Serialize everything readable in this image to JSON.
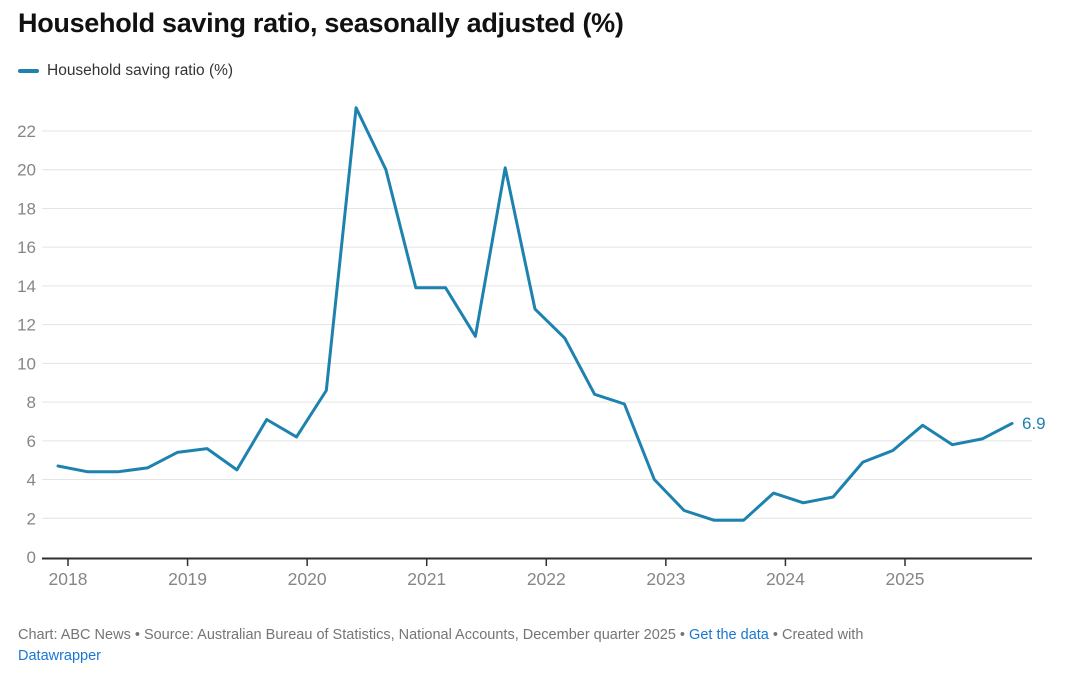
{
  "header": {
    "title": "Household saving ratio, seasonally adjusted (%)"
  },
  "legend": {
    "items": [
      {
        "label": "Household saving ratio (%)",
        "color": "#1e82af"
      }
    ]
  },
  "chart_data": {
    "type": "line",
    "title": "Household saving ratio, seasonally adjusted (%)",
    "x": [
      "2017-Q4",
      "2018-Q1",
      "2018-Q2",
      "2018-Q3",
      "2018-Q4",
      "2019-Q1",
      "2019-Q2",
      "2019-Q3",
      "2019-Q4",
      "2020-Q1",
      "2020-Q2",
      "2020-Q3",
      "2020-Q4",
      "2021-Q1",
      "2021-Q2",
      "2021-Q3",
      "2021-Q4",
      "2022-Q1",
      "2022-Q2",
      "2022-Q3",
      "2022-Q4",
      "2023-Q1",
      "2023-Q2",
      "2023-Q3",
      "2023-Q4",
      "2024-Q1",
      "2024-Q2",
      "2024-Q3",
      "2024-Q4",
      "2025-Q1",
      "2025-Q2",
      "2025-Q3",
      "2025-Q4"
    ],
    "series": [
      {
        "name": "Household saving ratio (%)",
        "color": "#1e82af",
        "values": [
          4.7,
          4.4,
          4.4,
          4.6,
          5.4,
          5.6,
          4.5,
          7.1,
          6.2,
          8.6,
          23.2,
          20.0,
          13.9,
          13.9,
          11.4,
          20.1,
          12.8,
          11.3,
          8.4,
          7.9,
          4.0,
          2.4,
          1.9,
          1.9,
          3.3,
          2.8,
          3.1,
          4.9,
          5.5,
          6.8,
          5.8,
          6.1,
          6.9
        ]
      }
    ],
    "x_tick_labels": [
      "2018",
      "2019",
      "2020",
      "2021",
      "2022",
      "2023",
      "2024",
      "2025"
    ],
    "y_ticks": [
      0,
      2,
      4,
      6,
      8,
      10,
      12,
      14,
      16,
      18,
      20,
      22
    ],
    "ylim": [
      0,
      23.5
    ],
    "grid": "horizontal",
    "legend_position": "top-left",
    "end_label": "6.9"
  },
  "footer": {
    "line1": [
      {
        "type": "text",
        "text": "Chart: ABC News • Source: Australian Bureau of Statistics, National Accounts, December quarter 2025 • "
      },
      {
        "type": "link",
        "name": "get-the-data-link",
        "text": "Get the data"
      },
      {
        "type": "text",
        "text": " • Created with"
      }
    ],
    "line2": [
      {
        "type": "link",
        "name": "datawrapper-link",
        "text": "Datawrapper"
      }
    ]
  },
  "colors": {
    "line": "#1e82af",
    "grid": "#e4e4e4",
    "axis": "#2f2f2f",
    "tick_label": "#868686",
    "footer_text": "#757575",
    "link": "#1976d2",
    "title": "#111111"
  }
}
